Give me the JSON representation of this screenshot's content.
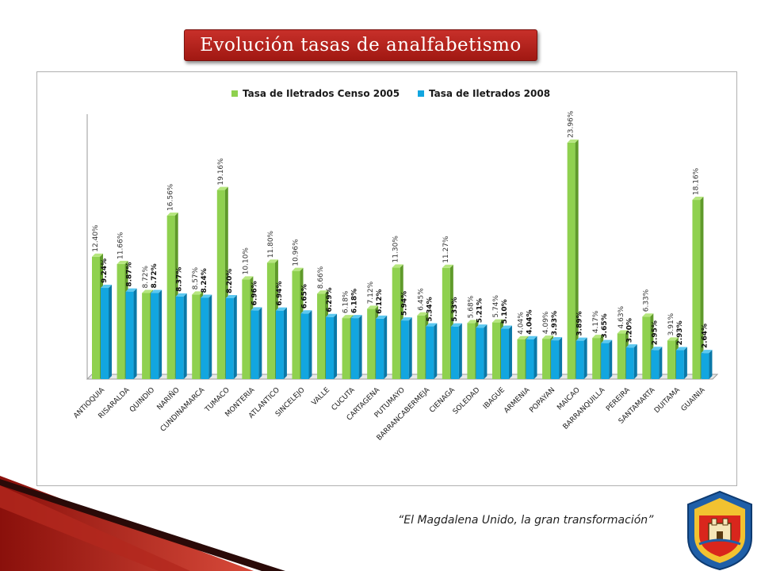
{
  "header": {
    "title": "Evolución tasas de analfabetismo"
  },
  "footer": {
    "quote": "“El Magdalena Unido, la gran transformación”"
  },
  "colors": {
    "accent": "#b81f17",
    "series_2005": "#8fd14f",
    "series_2008": "#12a6e0"
  },
  "chart_data": {
    "type": "bar",
    "title": "",
    "xlabel": "",
    "ylabel": "",
    "legend": "top",
    "grid": false,
    "ylim": [
      0,
      25
    ],
    "categories": [
      "ANTIOQUIA",
      "RISARALDA",
      "QUINDIO",
      "NARIÑO",
      "CUNDINAMARCA",
      "TUMACO",
      "MONTERIA",
      "ATLANTICO",
      "SINCELEJO",
      "VALLE",
      "CUCUTA",
      "CARTAGENA",
      "PUTUMAYO",
      "BARRANCABERMEJA",
      "CIENAGA",
      "SOLEDAD",
      "IBAGUE",
      "ARMENIA",
      "POPAYAN",
      "MAICAO",
      "BARRANQUILLA",
      "PEREIRA",
      "SANTAMARTA",
      "DUITAMA",
      "GUAINIA"
    ],
    "series": [
      {
        "name": "Tasa de Iletrados Censo 2005",
        "values": [
          12.4,
          11.66,
          8.72,
          16.56,
          8.57,
          19.16,
          10.1,
          11.8,
          10.96,
          8.66,
          6.18,
          7.12,
          11.3,
          6.45,
          11.27,
          5.68,
          5.74,
          4.04,
          4.09,
          23.96,
          4.17,
          4.63,
          6.33,
          3.91,
          18.16
        ],
        "labels": [
          "12.40%",
          "11.66%",
          "8.72%",
          "16.56%",
          "8.57%",
          "19.16%",
          "10.10%",
          "11.80%",
          "10.96%",
          "8.66%",
          "6.18%",
          "7.12%",
          "11.30%",
          "6.45%",
          "11.27%",
          "5.68%",
          "5.74%",
          "4.04%",
          "4.09%",
          "23.96%",
          "4.17%",
          "4.63%",
          "6.33%",
          "3.91%",
          "18.16%"
        ]
      },
      {
        "name": "Tasa de Iletrados 2008",
        "values": [
          9.24,
          8.87,
          8.72,
          8.37,
          8.24,
          8.2,
          6.96,
          6.94,
          6.65,
          6.29,
          6.18,
          6.12,
          5.94,
          5.34,
          5.33,
          5.21,
          5.1,
          4.04,
          3.93,
          3.89,
          3.65,
          3.2,
          2.95,
          2.93,
          2.64
        ],
        "labels": [
          "9.24%",
          "8.87%",
          "8.72%",
          "8.37%",
          "8.24%",
          "8.20%",
          "6.96%",
          "6.94%",
          "6.65%",
          "6.29%",
          "6.18%",
          "6.12%",
          "5.94%",
          "5.34%",
          "5.33%",
          "5.21%",
          "5.10%",
          "4.04%",
          "3.93%",
          "3.89%",
          "3.65%",
          "3.20%",
          "2.95%",
          "2.93%",
          "2.64%"
        ]
      }
    ]
  }
}
